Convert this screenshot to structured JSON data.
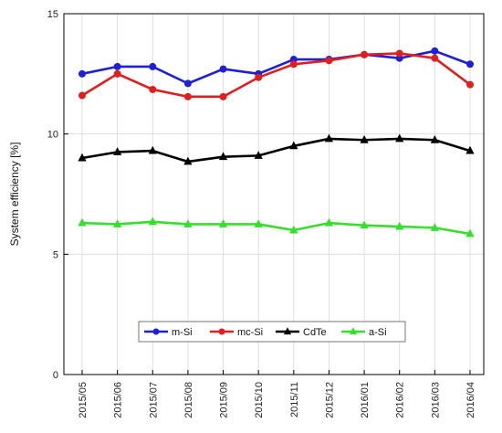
{
  "chart_data": {
    "type": "line",
    "ylabel": "System efficiency [%]",
    "xlabel": "",
    "ylim": [
      0,
      15
    ],
    "yticks": [
      0,
      5,
      10,
      15
    ],
    "grid": true,
    "legend_position": "lower-center",
    "categories": [
      "2015/05",
      "2015/06",
      "2015/07",
      "2015/08",
      "2015/09",
      "2015/10",
      "2015/11",
      "2015/12",
      "2016/01",
      "2016/02",
      "2016/03",
      "2016/04"
    ],
    "series": [
      {
        "name": "m-Si",
        "color": "#1f1fd6",
        "marker": "circle",
        "values": [
          12.5,
          12.8,
          12.8,
          12.1,
          12.7,
          12.5,
          13.1,
          13.1,
          13.3,
          13.15,
          13.45,
          12.9
        ]
      },
      {
        "name": "mc-Si",
        "color": "#e01e1e",
        "marker": "circle",
        "values": [
          11.6,
          12.5,
          11.85,
          11.55,
          11.55,
          12.35,
          12.9,
          13.05,
          13.3,
          13.35,
          13.15,
          12.05
        ]
      },
      {
        "name": "CdTe",
        "color": "#000000",
        "marker": "triangle",
        "values": [
          9.0,
          9.25,
          9.3,
          8.85,
          9.05,
          9.1,
          9.5,
          9.8,
          9.75,
          9.8,
          9.75,
          9.3
        ]
      },
      {
        "name": "a-Si",
        "color": "#33e02a",
        "marker": "triangle",
        "values": [
          6.3,
          6.25,
          6.35,
          6.25,
          6.25,
          6.25,
          6.0,
          6.3,
          6.2,
          6.15,
          6.1,
          5.85
        ]
      }
    ]
  }
}
